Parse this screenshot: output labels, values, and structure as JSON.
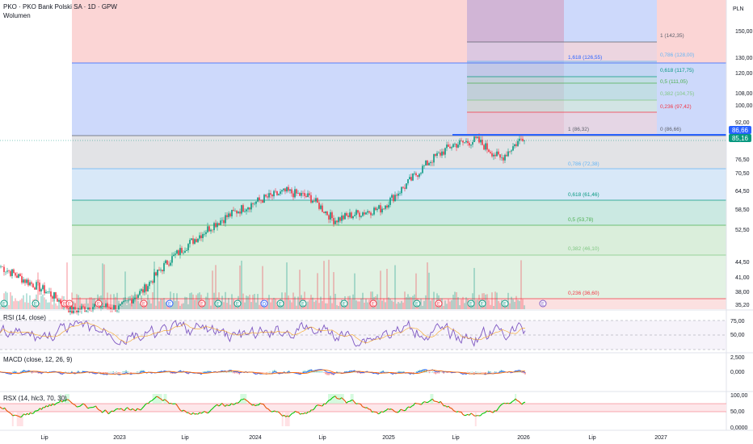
{
  "header": {
    "symbol_line": "PKO · PKO Bank Polski SA · 1D · GPW",
    "volume_label": "Wolumen",
    "currency": "PLN"
  },
  "price_axis": {
    "ticks": [
      "150,00",
      "130,00",
      "120,00",
      "108,00",
      "100,00",
      "92,00",
      "76,50",
      "70,50",
      "64,50",
      "58,50",
      "52,50",
      "44,50",
      "41,00",
      "38,00",
      "35,20"
    ],
    "current_price": "86,66",
    "close_price": "85,16"
  },
  "fib_upper": [
    {
      "label": "1 (142,35)",
      "color": "#5d606b"
    },
    {
      "label": "0,786 (128,00)",
      "color": "#64b5f6"
    },
    {
      "label": "0,618 (117,75)",
      "color": "#089981"
    },
    {
      "label": "0,5 (111,05)",
      "color": "#4caf50"
    },
    {
      "label": "0,382 (104,75)",
      "color": "#81c784"
    },
    {
      "label": "0,236 (97,42)",
      "color": "#f23645"
    },
    {
      "label": "0 (86,66)",
      "color": "#5d606b"
    }
  ],
  "fib_ext_label": "1,618 (126,55)",
  "fib_lower": [
    {
      "label": "1 (86,32)",
      "color": "#5d606b"
    },
    {
      "label": "0,786 (72,38)",
      "color": "#64b5f6"
    },
    {
      "label": "0,618 (61,46)",
      "color": "#089981"
    },
    {
      "label": "0,5 (53,78)",
      "color": "#4caf50"
    },
    {
      "label": "0,382 (46,10)",
      "color": "#81c784"
    },
    {
      "label": "0,236 (36,60)",
      "color": "#f23645"
    }
  ],
  "panes": {
    "rsi": {
      "title": "RSI (14, close)",
      "ticks": [
        "75,00",
        "50,00"
      ]
    },
    "macd": {
      "title": "MACD (close, 12, 26, 9)",
      "ticks": [
        "2,500",
        "0,000"
      ]
    },
    "rsx": {
      "title": "RSX (14, hlc3, 70, 30)",
      "ticks": [
        "100,00",
        "50,00",
        "0,0000"
      ]
    }
  },
  "time_axis": [
    "Lip",
    "2023",
    "Lip",
    "2024",
    "Lip",
    "2025",
    "Lip",
    "2026",
    "Lip",
    "2027"
  ],
  "colors": {
    "up": "#089981",
    "down": "#f23645",
    "rsi": "#7e57c2",
    "macd": "#2962ff",
    "signal": "#ff6d00",
    "rsx_up": "#00c805",
    "rsx_down": "#e65100",
    "price_line": "#2962ff"
  },
  "chart_data": {
    "type": "line",
    "title": "PKO · PKO Bank Polski SA · 1D · GPW",
    "xlabel": "",
    "ylabel": "",
    "x": [
      "2022-04",
      "2022-06",
      "2022-08",
      "2022-10",
      "2022-12",
      "2023-02",
      "2023-04",
      "2023-06",
      "2023-08",
      "2023-10",
      "2023-12",
      "2024-02",
      "2024-04",
      "2024-06",
      "2024-08",
      "2024-10",
      "2024-12",
      "2025-02",
      "2025-04",
      "2025-06",
      "2025-08",
      "2025-10",
      "2025-12"
    ],
    "series": [
      {
        "values": [
          43.0,
          40.0,
          37.5,
          34.0,
          35.0,
          34.5,
          38.0,
          44.0,
          49.0,
          54.0,
          58.0,
          61.5,
          64.0,
          62.0,
          55.0,
          57.0,
          58.5,
          66.0,
          75.0,
          82.0,
          84.0,
          76.0,
          86.0
        ]
      }
    ],
    "ylim": [
      35.2,
      150
    ],
    "y_scale": "log",
    "grid": false
  }
}
